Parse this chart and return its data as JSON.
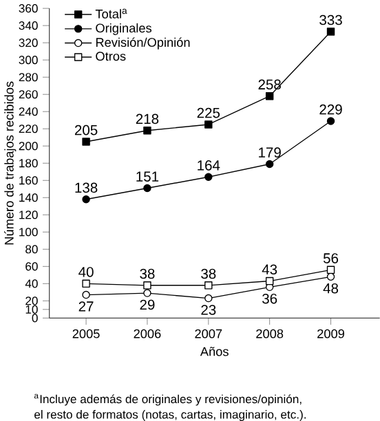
{
  "chart_data": {
    "type": "line",
    "xlabel": "Años",
    "ylabel": "Número de trabajos recibidos",
    "x": [
      2005,
      2006,
      2007,
      2008,
      2009
    ],
    "xlim": [
      2004.4,
      2009.8
    ],
    "xticks": [
      2005,
      2006,
      2007,
      2008,
      2009
    ],
    "ylim": [
      0,
      360
    ],
    "yticks": [
      0,
      10,
      20,
      40,
      60,
      80,
      100,
      120,
      140,
      160,
      180,
      200,
      220,
      240,
      260,
      280,
      300,
      320,
      340,
      360
    ],
    "series": [
      {
        "name": "Total$^{a}$",
        "color": "#000000",
        "marker": "square",
        "values": [
          205,
          218,
          225,
          258,
          333
        ]
      },
      {
        "name": "Originales",
        "color": "#000000",
        "marker": "circle",
        "values": [
          138,
          151,
          164,
          179,
          229
        ]
      },
      {
        "name": "Revisión/Opinión",
        "color": "#000000",
        "marker": "circle",
        "values": [
          27,
          29,
          23,
          36,
          48
        ]
      },
      {
        "name": "Otros",
        "color": "#000000",
        "marker": "square",
        "values": [
          40,
          38,
          38,
          43,
          56
        ]
      }
    ],
    "data_labels": true,
    "legend": "top left",
    "grid": false,
    "line_style": "solid",
    "annotations": [
      "$^{a}$Incluye además de originales y revisiones/opinión,",
      "el resto de formatos (notas, cartas, imaginario, etc.)."
    ]
  }
}
